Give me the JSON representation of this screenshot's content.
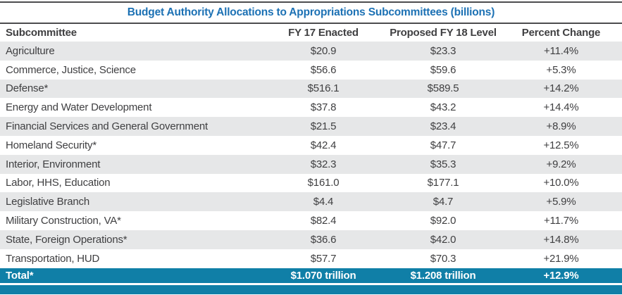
{
  "chart_data": {
    "type": "table",
    "title": "Budget Authority Allocations to Appropriations Subcommittees (billions)",
    "columns": [
      "Subcommittee",
      "FY 17 Enacted",
      "Proposed FY 18 Level",
      "Percent Change"
    ],
    "rows": [
      [
        "Agriculture",
        "$20.9",
        "$23.3",
        "+11.4%"
      ],
      [
        "Commerce, Justice, Science",
        "$56.6",
        "$59.6",
        "+5.3%"
      ],
      [
        "Defense*",
        "$516.1",
        "$589.5",
        "+14.2%"
      ],
      [
        "Energy and Water Development",
        "$37.8",
        "$43.2",
        "+14.4%"
      ],
      [
        "Financial Services and General Government",
        "$21.5",
        "$23.4",
        "+8.9%"
      ],
      [
        "Homeland Security*",
        "$42.4",
        "$47.7",
        "+12.5%"
      ],
      [
        "Interior, Environment",
        "$32.3",
        "$35.3",
        "+9.2%"
      ],
      [
        "Labor, HHS, Education",
        "$161.0",
        "$177.1",
        "+10.0%"
      ],
      [
        "Legislative Branch",
        "$4.4",
        "$4.7",
        "+5.9%"
      ],
      [
        "Military Construction, VA*",
        "$82.4",
        "$92.0",
        "+11.7%"
      ],
      [
        "State, Foreign Operations*",
        "$36.6",
        "$42.0",
        "+14.8%"
      ],
      [
        "Transportation, HUD",
        "$57.7",
        "$70.3",
        "+21.9%"
      ]
    ],
    "total_row": [
      "Total*",
      "$1.070 trillion",
      "$1.208 trillion",
      "+12.9%"
    ],
    "layout_hints": {
      "row_striping": "alternating gray/white starting gray",
      "total_row_style": "teal background, white bold text",
      "numeric_alignment": "center"
    }
  },
  "colors": {
    "title_blue": "#1c71b4",
    "total_teal": "#107fa7",
    "row_gray": "#e6e7e8",
    "body_text": "#3f3f41",
    "rule_gray": "#4c4c4e"
  }
}
